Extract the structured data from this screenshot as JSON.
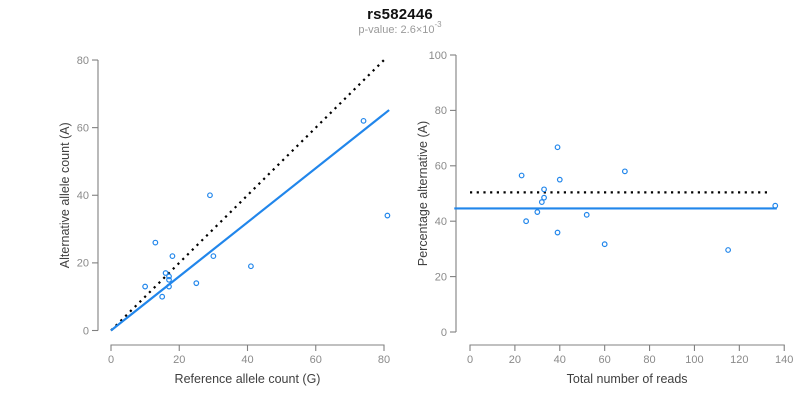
{
  "header": {
    "title": "rs582446",
    "p_value": {
      "prefix": "p-value: 2.6×10",
      "exponent": "-3"
    }
  },
  "colors": {
    "point_blue": "#2186EB",
    "line_blue": "#2186EB",
    "dotted_black": "#000000",
    "axis_gray": "#808080",
    "tick_label_gray": "#8a8a8a",
    "axis_title_gray": "#404040",
    "title_black": "#111111",
    "subtitle_gray": "#9a9a9a"
  },
  "chart_data": [
    {
      "name": "allele-count-scatter",
      "type": "scatter",
      "xlabel": "Reference allele count (G)",
      "ylabel": "Alternative allele count (A)",
      "xlim": [
        0,
        80
      ],
      "ylim": [
        0,
        80
      ],
      "xticks": [
        0,
        20,
        40,
        60,
        80
      ],
      "yticks": [
        0,
        20,
        40,
        60,
        80
      ],
      "grid": false,
      "points": [
        [
          29,
          40
        ],
        [
          13,
          26
        ],
        [
          18,
          22
        ],
        [
          30,
          22
        ],
        [
          41,
          19
        ],
        [
          16,
          17
        ],
        [
          17,
          16
        ],
        [
          17,
          15
        ],
        [
          17,
          13
        ],
        [
          10,
          13
        ],
        [
          25,
          14
        ],
        [
          15,
          10
        ],
        [
          74,
          62
        ],
        [
          81,
          34
        ]
      ],
      "lines": [
        {
          "name": "expected-identity-line",
          "style": "dotted",
          "color": "#000000",
          "x1": 0,
          "y1": 0,
          "x2": 80.7,
          "y2": 80.7
        },
        {
          "name": "fitted-ratio-line",
          "style": "solid",
          "color": "#2186EB",
          "x1": 0,
          "y1": 0,
          "x2": 81.5,
          "y2": 65.2
        }
      ]
    },
    {
      "name": "percentage-alternative-scatter",
      "type": "scatter",
      "xlabel": "Total number of reads",
      "ylabel": "Percentage alternative (A)",
      "xlim": [
        0,
        140
      ],
      "ylim": [
        0,
        100
      ],
      "xticks": [
        0,
        20,
        40,
        60,
        80,
        100,
        120,
        140
      ],
      "yticks": [
        0,
        20,
        40,
        60,
        80,
        100
      ],
      "grid": false,
      "points": [
        [
          69,
          58.0
        ],
        [
          39,
          66.7
        ],
        [
          40,
          55.0
        ],
        [
          52,
          42.3
        ],
        [
          60,
          31.7
        ],
        [
          33,
          51.5
        ],
        [
          33,
          48.5
        ],
        [
          32,
          46.9
        ],
        [
          30,
          43.3
        ],
        [
          23,
          56.5
        ],
        [
          39,
          35.9
        ],
        [
          25,
          40.0
        ],
        [
          136,
          45.6
        ],
        [
          115,
          29.6
        ]
      ],
      "lines": [
        {
          "name": "expected-50pct-line",
          "style": "dotted",
          "color": "#000000",
          "x1": 0,
          "y1": 50.4,
          "x2": 133,
          "y2": 50.4
        },
        {
          "name": "fitted-pct-line",
          "style": "solid",
          "color": "#2186EB",
          "x1": -7,
          "y1": 44.6,
          "x2": 136.7,
          "y2": 44.6
        }
      ]
    }
  ]
}
